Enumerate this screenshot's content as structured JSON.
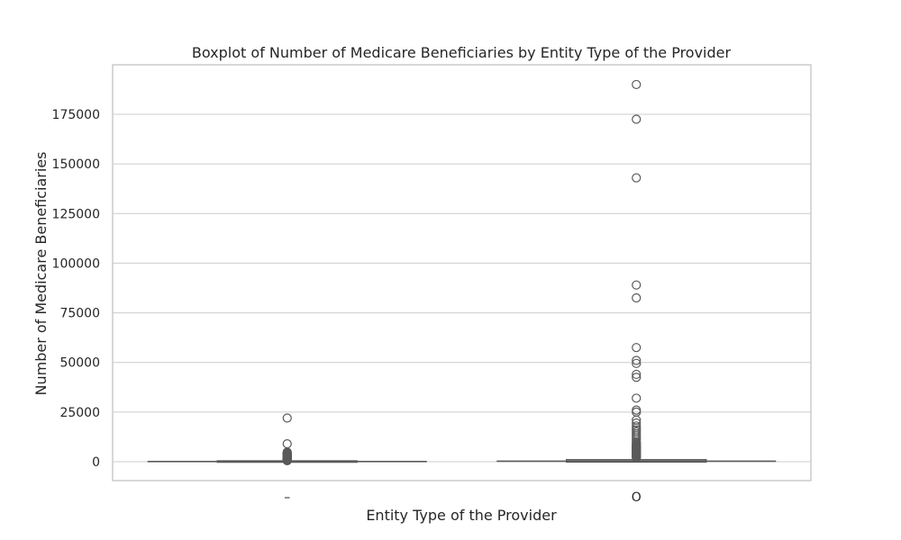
{
  "chart_data": {
    "type": "boxplot",
    "title": "Boxplot of Number of Medicare Beneficiaries by Entity Type of the Provider",
    "xlabel": "Entity Type of the Provider",
    "ylabel": "Number of Medicare Beneficiaries",
    "ylim": [
      -7500,
      197500
    ],
    "yticks": [
      0,
      25000,
      50000,
      75000,
      100000,
      125000,
      150000,
      175000
    ],
    "categories": [
      "–",
      "O"
    ],
    "grid": true,
    "legend": "none",
    "colors": {
      "box": "#5a5a5a",
      "grid": "#cccccc",
      "frame": "#cccccc",
      "fill": "#dfe5ee"
    },
    "boxes": [
      {
        "category": "–",
        "whisker_low": 11,
        "q1": 40,
        "median": 90,
        "q3": 200,
        "whisker_high": 450,
        "outliers": [
          500,
          600,
          700,
          800,
          900,
          1000,
          1100,
          1200,
          1300,
          1400,
          1500,
          1600,
          1700,
          1800,
          1900,
          2000,
          2100,
          2200,
          2300,
          2400,
          2500,
          2600,
          2700,
          2800,
          2900,
          3000,
          3200,
          3400,
          3600,
          3800,
          4000,
          4200,
          4500,
          4800,
          9000,
          22000
        ]
      },
      {
        "category": "O",
        "whisker_low": 11,
        "q1": 60,
        "median": 250,
        "q3": 800,
        "whisker_high": 1800,
        "outliers": [
          2000,
          2300,
          2600,
          2900,
          3200,
          3500,
          3800,
          4100,
          4400,
          4700,
          5000,
          5300,
          5600,
          5900,
          6200,
          6500,
          6800,
          7100,
          7400,
          7700,
          8000,
          8500,
          9000,
          9500,
          10000,
          11000,
          12000,
          13000,
          14000,
          15000,
          16000,
          17000,
          18000,
          19500,
          21000,
          25000,
          26000,
          32000,
          42500,
          44000,
          49500,
          51000,
          57500,
          82500,
          89000,
          143000,
          172500,
          190000
        ]
      }
    ]
  }
}
